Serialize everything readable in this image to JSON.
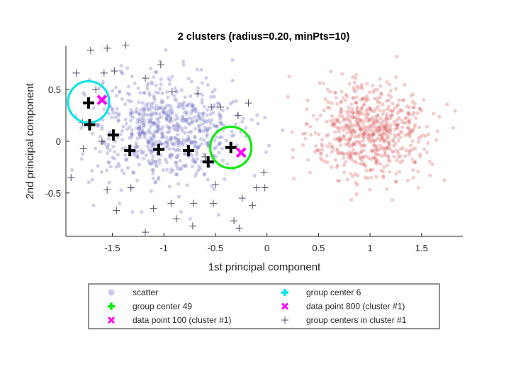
{
  "chart_data": {
    "type": "scatter",
    "title": "2 clusters (radius=0.20, minPts=10)",
    "xlabel": "1st principal component",
    "ylabel": "2nd principal component",
    "xlim": [
      -1.95,
      1.9
    ],
    "ylim": [
      -0.92,
      0.92
    ],
    "xticks": [
      -1.5,
      -1,
      -0.5,
      0,
      0.5,
      1,
      1.5
    ],
    "xtick_labels": [
      "-1.5",
      "-1",
      "-0.5",
      "0",
      "0.5",
      "1",
      "1.5"
    ],
    "yticks": [
      -0.5,
      0,
      0.5
    ],
    "ytick_labels": [
      "-0.5",
      "0",
      "0.5"
    ],
    "grid": false,
    "legend_position": "bottom",
    "clusters": [
      {
        "center": [
          -1.0,
          0.12
        ],
        "spread": [
          0.36,
          0.26
        ],
        "count": 700,
        "color": "#7777cc"
      },
      {
        "center": [
          1.0,
          0.1
        ],
        "spread": [
          0.28,
          0.23
        ],
        "count": 650,
        "color": "#e07070"
      }
    ],
    "series": [
      {
        "name": "scatter",
        "kind": "scatter",
        "color": "#8c8cd9"
      },
      {
        "name": "group center 49",
        "kind": "marker",
        "marker": "plus",
        "color": "#00ee00",
        "points": [
          [
            -0.35,
            -0.06
          ]
        ]
      },
      {
        "name": "data point 100 (cluster #1)",
        "kind": "marker",
        "marker": "x",
        "color": "#ff00ff",
        "points": [
          [
            -0.25,
            -0.11
          ]
        ]
      },
      {
        "name": "group center 6",
        "kind": "marker",
        "marker": "plus",
        "color": "#00e5e5",
        "points": [
          [
            -1.73,
            0.37
          ]
        ]
      },
      {
        "name": "data point 800 (cluster #1)",
        "kind": "marker",
        "marker": "x",
        "color": "#ff00ff",
        "points": [
          [
            -1.6,
            0.4
          ]
        ]
      },
      {
        "name": "group centers in cluster #1",
        "kind": "marker",
        "marker": "plus",
        "color": "#555555",
        "points": [
          [
            -1.71,
            0.88
          ],
          [
            -1.55,
            0.9
          ],
          [
            -1.37,
            0.93
          ],
          [
            -1.85,
            0.66
          ],
          [
            -1.58,
            0.66
          ],
          [
            -1.48,
            0.68
          ],
          [
            -1.03,
            0.74
          ],
          [
            -1.66,
            0.5
          ],
          [
            -1.18,
            0.61
          ],
          [
            -0.92,
            0.48
          ],
          [
            -0.67,
            0.46
          ],
          [
            -0.45,
            0.33
          ],
          [
            -0.54,
            0.33
          ],
          [
            -0.18,
            0.37
          ],
          [
            -0.28,
            0.25
          ],
          [
            -1.79,
            0.18
          ],
          [
            -1.78,
            -0.07
          ],
          [
            -1.6,
            0.0
          ],
          [
            -1.55,
            -0.47
          ],
          [
            -1.46,
            -0.67
          ],
          [
            -1.18,
            -0.88
          ],
          [
            -0.93,
            -0.6
          ],
          [
            -0.88,
            -0.75
          ],
          [
            -0.72,
            -0.82
          ],
          [
            -0.52,
            -0.6
          ],
          [
            -0.5,
            -0.42
          ],
          [
            -0.24,
            -0.55
          ],
          [
            -0.1,
            -0.45
          ],
          [
            -0.03,
            -0.3
          ],
          [
            -0.02,
            -0.45
          ],
          [
            -1.9,
            -0.35
          ],
          [
            -0.27,
            -0.84
          ],
          [
            -0.14,
            -0.62
          ],
          [
            -0.71,
            -0.6
          ],
          [
            -1.32,
            -0.45
          ],
          [
            -0.32,
            -0.77
          ],
          [
            -1.1,
            -0.65
          ],
          [
            -0.6,
            -0.15
          ]
        ]
      },
      {
        "name": "",
        "kind": "bold-centers",
        "marker": "plus",
        "color": "#000000",
        "points": [
          [
            -1.73,
            0.37
          ],
          [
            -1.72,
            0.16
          ],
          [
            -1.49,
            0.06
          ],
          [
            -1.33,
            -0.09
          ],
          [
            -1.05,
            -0.08
          ],
          [
            -0.76,
            -0.09
          ],
          [
            -0.57,
            -0.2
          ],
          [
            -0.35,
            -0.06
          ]
        ]
      }
    ],
    "circles": [
      {
        "center": [
          -1.73,
          0.38
        ],
        "radius": 0.2,
        "color": "#00e5e5"
      },
      {
        "center": [
          -0.35,
          -0.06
        ],
        "radius": 0.2,
        "color": "#00ee00"
      }
    ]
  }
}
